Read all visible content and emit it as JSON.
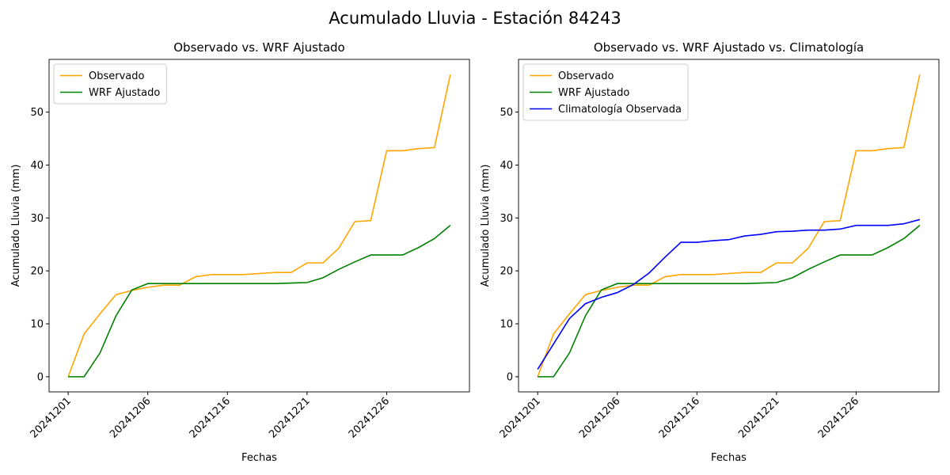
{
  "title": "Acumulado Lluvia - Estación 84243",
  "chart_data": [
    {
      "type": "line",
      "title": "Observado vs. WRF Ajustado",
      "x_label": "Fechas",
      "y_label": "Acumulado Lluvia (mm)",
      "categories": [
        "20241201",
        null,
        null,
        null,
        null,
        "20241206",
        null,
        null,
        null,
        null,
        "20241216",
        null,
        null,
        null,
        null,
        "20241221",
        null,
        null,
        null,
        null,
        "20241226",
        null,
        null,
        null,
        null
      ],
      "series": [
        {
          "name": "Observado",
          "color": "orange",
          "values": [
            0,
            8.1,
            11.9,
            15.5,
            16.3,
            16.9,
            17.3,
            17.3,
            18.9,
            19.3,
            19.3,
            19.3,
            19.5,
            19.7,
            19.7,
            21.5,
            21.5,
            24.3,
            29.3,
            29.5,
            42.7,
            42.7,
            43.1,
            43.3,
            57.1
          ]
        },
        {
          "name": "WRF Ajustado",
          "color": "green",
          "values": [
            0,
            0,
            4.5,
            11.5,
            16.4,
            17.6,
            17.6,
            17.6,
            17.6,
            17.6,
            17.6,
            17.6,
            17.6,
            17.6,
            17.7,
            17.8,
            18.7,
            20.3,
            21.7,
            23.0,
            23.0,
            23.0,
            24.4,
            26.1,
            28.6
          ]
        }
      ],
      "xlim": [
        -1.2,
        25.2
      ],
      "ylim": [
        -2.86,
        59.96
      ],
      "yticks": [
        0,
        10,
        20,
        30,
        40,
        50
      ],
      "legend": "upper left",
      "grid": false
    },
    {
      "type": "line",
      "title": "Observado vs. WRF Ajustado vs. Climatología",
      "x_label": "Fechas",
      "y_label": "Acumulado Lluvia (mm)",
      "categories": [
        "20241201",
        null,
        null,
        null,
        null,
        "20241206",
        null,
        null,
        null,
        null,
        "20241216",
        null,
        null,
        null,
        null,
        "20241221",
        null,
        null,
        null,
        null,
        "20241226",
        null,
        null,
        null,
        null
      ],
      "series": [
        {
          "name": "Observado",
          "color": "orange",
          "values": [
            0,
            8.1,
            11.9,
            15.5,
            16.3,
            16.9,
            17.3,
            17.3,
            18.9,
            19.3,
            19.3,
            19.3,
            19.5,
            19.7,
            19.7,
            21.5,
            21.5,
            24.3,
            29.3,
            29.5,
            42.7,
            42.7,
            43.1,
            43.3,
            57.1
          ]
        },
        {
          "name": "WRF Ajustado",
          "color": "green",
          "values": [
            0,
            0,
            4.5,
            11.5,
            16.4,
            17.6,
            17.6,
            17.6,
            17.6,
            17.6,
            17.6,
            17.6,
            17.6,
            17.6,
            17.7,
            17.8,
            18.7,
            20.3,
            21.7,
            23.0,
            23.0,
            23.0,
            24.4,
            26.1,
            28.6
          ]
        },
        {
          "name": "Climatología Observada",
          "color": "blue",
          "values": [
            1.4,
            6.2,
            11.0,
            13.8,
            15.0,
            15.9,
            17.4,
            19.6,
            22.6,
            25.4,
            25.4,
            25.7,
            25.9,
            26.6,
            26.9,
            27.4,
            27.5,
            27.7,
            27.7,
            27.9,
            28.6,
            28.6,
            28.6,
            28.9,
            29.7
          ]
        }
      ],
      "xlim": [
        -1.2,
        25.2
      ],
      "ylim": [
        -2.86,
        59.96
      ],
      "yticks": [
        0,
        10,
        20,
        30,
        40,
        50
      ],
      "legend": "upper left",
      "grid": false
    }
  ]
}
